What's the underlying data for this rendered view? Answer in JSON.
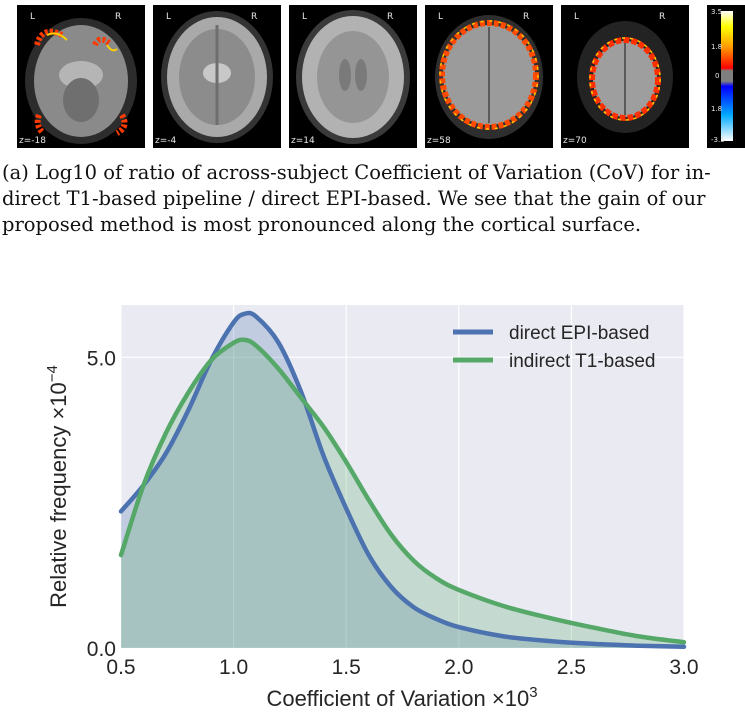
{
  "brain_strip": {
    "panels": [
      {
        "left_label": "L",
        "right_label": "R",
        "z_label": "z=-18"
      },
      {
        "left_label": "L",
        "right_label": "R",
        "z_label": "z=-4"
      },
      {
        "left_label": "L",
        "right_label": "R",
        "z_label": "z=14"
      },
      {
        "left_label": "L",
        "right_label": "R",
        "z_label": "z=58"
      },
      {
        "left_label": "L",
        "right_label": "R",
        "z_label": "z=70"
      }
    ],
    "colorbar": {
      "ticks": [
        "3.5",
        "1.8",
        "0",
        "1.8",
        "-3.5"
      ],
      "colors": [
        "#ffffff",
        "#ffff00",
        "#ff9900",
        "#ff0000",
        "#7f7f7f",
        "#0000ff",
        "#00aaff",
        "#ffffff"
      ]
    }
  },
  "caption": {
    "line1": "(a)  Log10 of ratio of across-subject Coefficient of Variation (CoV) for in-",
    "line2": "direct T1-based pipeline / direct EPI-based.  We see that the gain of our",
    "line3": "proposed method is most pronounced along the cortical surface."
  },
  "chart_data": {
    "type": "area",
    "xlabel_prefix": "Coefficient of Variation ×10",
    "xlabel_exp": "3",
    "ylabel_prefix": "Relative frequency ×10",
    "ylabel_exp": "−4",
    "xlim": [
      0.5,
      3.0
    ],
    "ylim": [
      0.0,
      5.9
    ],
    "xticks": [
      0.5,
      1.0,
      1.5,
      2.0,
      2.5,
      3.0
    ],
    "xtick_labels": [
      "0.5",
      "1.0",
      "1.5",
      "2.0",
      "2.5",
      "3.0"
    ],
    "yticks": [
      0.0,
      5.0
    ],
    "ytick_labels": [
      "0.0",
      "5.0"
    ],
    "grid": true,
    "background": "#eaeaf2",
    "legend_position": "top-right",
    "series": [
      {
        "name": "direct EPI-based",
        "color": "#4c72b0",
        "x": [
          0.5,
          0.6,
          0.7,
          0.8,
          0.9,
          1.0,
          1.05,
          1.1,
          1.2,
          1.3,
          1.4,
          1.5,
          1.6,
          1.7,
          1.8,
          1.9,
          2.0,
          2.2,
          2.4,
          2.6,
          2.8,
          3.0
        ],
        "y": [
          2.35,
          2.8,
          3.35,
          4.1,
          4.95,
          5.6,
          5.75,
          5.7,
          5.25,
          4.4,
          3.3,
          2.4,
          1.6,
          1.05,
          0.7,
          0.5,
          0.36,
          0.2,
          0.12,
          0.07,
          0.04,
          0.02
        ]
      },
      {
        "name": "indirect T1-based",
        "color": "#55a868",
        "x": [
          0.5,
          0.6,
          0.7,
          0.8,
          0.9,
          1.0,
          1.05,
          1.1,
          1.2,
          1.3,
          1.4,
          1.5,
          1.6,
          1.7,
          1.8,
          1.9,
          2.0,
          2.2,
          2.4,
          2.6,
          2.8,
          3.0
        ],
        "y": [
          1.6,
          2.8,
          3.7,
          4.4,
          4.95,
          5.25,
          5.3,
          5.2,
          4.8,
          4.3,
          3.8,
          3.2,
          2.55,
          1.95,
          1.5,
          1.2,
          1.0,
          0.72,
          0.52,
          0.35,
          0.2,
          0.1
        ]
      }
    ]
  }
}
